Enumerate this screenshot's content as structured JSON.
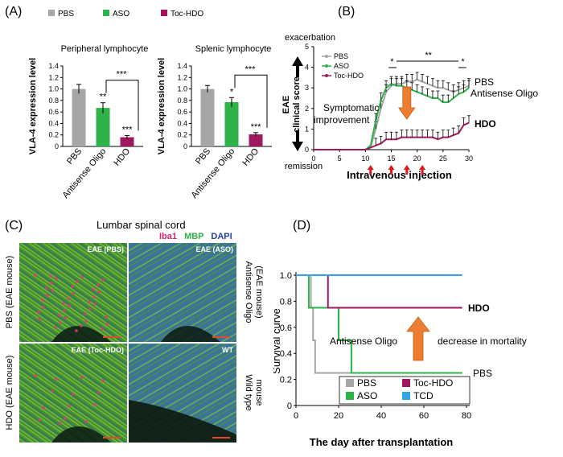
{
  "panels": {
    "A": {
      "label": "(A)",
      "legend": [
        {
          "name": "PBS",
          "color": "#a6a6a6"
        },
        {
          "name": "ASO",
          "color": "#2db34a"
        },
        {
          "name": "Toc-HDO",
          "color": "#a0195c"
        }
      ],
      "charts": [
        {
          "title": "Peripheral lymphocyte",
          "ylabel": "VLA-4 expression level",
          "ylim": [
            0,
            1.4
          ],
          "yticks": [
            "0",
            "0.2",
            "0.4",
            "0.6",
            "0.8",
            "1.0",
            "1.2",
            "1.4"
          ],
          "categories": [
            "PBS",
            "Antisense Oligo",
            "HDO"
          ],
          "values": [
            1.0,
            0.67,
            0.16
          ],
          "errors": [
            0.08,
            0.09,
            0.03
          ],
          "significance": [
            "",
            "**",
            "***"
          ],
          "bracket": "***"
        },
        {
          "title": "Splenic lymphocyte",
          "ylabel": "VLA-4 expression level",
          "ylim": [
            0,
            1.4
          ],
          "yticks": [
            "0",
            "0.2",
            "0.4",
            "0.6",
            "0.8",
            "1.0",
            "1.2",
            "1.4"
          ],
          "categories": [
            "PBS",
            "Antisense Oligo",
            "HDO"
          ],
          "values": [
            1.0,
            0.77,
            0.21
          ],
          "errors": [
            0.06,
            0.08,
            0.03
          ],
          "significance": [
            "",
            "*",
            "***"
          ],
          "bracket": "***"
        }
      ]
    },
    "B": {
      "label": "(B)",
      "top_label": "exacerbation",
      "bottom_label": "remission",
      "ylabel": "EAE clinical score",
      "ylabel_line1": "EAE",
      "ylabel_line2": "clinical score",
      "xlabel": "Intravenous injection",
      "annotation": "Symptomatic improvement",
      "annotation_line1": "Symptomatic",
      "annotation_line2": "improvement",
      "label_pbs": "PBS",
      "label_aso": "Antisense Oligo",
      "label_hdo": "HDO",
      "sig_left": "*",
      "sig_mid": "**",
      "sig_right": "*",
      "legend": [
        "PBS",
        "ASO",
        "Toc-HDO"
      ],
      "injection_days": [
        11,
        15,
        18,
        21
      ],
      "chart_data": {
        "type": "line",
        "xlim": [
          0,
          30
        ],
        "ylim": [
          0,
          5
        ],
        "xticks": [
          "0",
          "5",
          "10",
          "15",
          "20",
          "25",
          "30"
        ],
        "yticks": [
          "0",
          "1",
          "2",
          "3",
          "4",
          "5"
        ],
        "x": [
          0,
          1,
          2,
          3,
          4,
          5,
          6,
          7,
          8,
          9,
          10,
          11,
          12,
          13,
          14,
          15,
          16,
          17,
          18,
          19,
          20,
          21,
          22,
          23,
          24,
          25,
          26,
          27,
          28,
          29,
          30
        ],
        "series": [
          {
            "name": "PBS",
            "color": "#a6a6a6",
            "values": [
              0,
              0,
              0,
              0,
              0,
              0,
              0,
              0,
              0,
              0,
              0,
              0.1,
              1.0,
              2.0,
              2.8,
              3.1,
              3.2,
              3.2,
              3.3,
              3.3,
              3.4,
              3.3,
              3.2,
              3.1,
              3.0,
              3.0,
              2.9,
              2.8,
              2.9,
              3.0,
              3.1
            ]
          },
          {
            "name": "ASO",
            "color": "#2db34a",
            "values": [
              0,
              0,
              0,
              0,
              0,
              0,
              0,
              0,
              0,
              0,
              0,
              0.2,
              1.4,
              2.4,
              3.0,
              3.2,
              3.1,
              3.1,
              3.0,
              2.9,
              2.8,
              2.7,
              2.6,
              2.5,
              2.5,
              2.3,
              2.3,
              2.5,
              2.7,
              2.8,
              3.0
            ]
          },
          {
            "name": "Toc-HDO",
            "color": "#a0195c",
            "values": [
              0,
              0,
              0,
              0,
              0,
              0,
              0,
              0,
              0,
              0,
              0,
              0.1,
              0.2,
              0.3,
              0.5,
              0.5,
              0.5,
              0.6,
              0.6,
              0.6,
              0.6,
              0.6,
              0.6,
              0.6,
              0.5,
              0.6,
              0.6,
              0.7,
              0.8,
              1.2,
              1.3
            ]
          }
        ]
      }
    },
    "C": {
      "label": "(C)",
      "title": "Lumbar spinal cord",
      "stain_iba1": "Iba1",
      "stain_mbp": "MBP",
      "stain_dapi": "DAPI",
      "images": [
        {
          "tag": "EAE (PBS)"
        },
        {
          "tag": "EAE (ASO)"
        },
        {
          "tag": "EAE (Toc-HDO)"
        },
        {
          "tag": "WT"
        }
      ],
      "left_labels": [
        "PBS (EAE mouse)",
        "HDO (EAE mouse)"
      ],
      "right_labels": [
        "Antisense Oligo (EAE mouse)",
        "Wild type mouse"
      ],
      "right_top_line1": "Antisense Oligo",
      "right_top_line2": "(EAE mouse)",
      "right_bottom_line1": "Wild type",
      "right_bottom_line2": "mouse"
    },
    "D": {
      "label": "(D)",
      "ylabel": "Survival curve",
      "xlabel": "The day after transplantation",
      "annotation_aso": "Antisense Oligo",
      "annotation_mortality": "decrease in mortality",
      "label_hdo": "HDO",
      "label_pbs": "PBS",
      "legend": [
        {
          "name": "PBS",
          "color": "#a6a6a6"
        },
        {
          "name": "Toc-HDO",
          "color": "#a0195c"
        },
        {
          "name": "ASO",
          "color": "#2db34a"
        },
        {
          "name": "TCD",
          "color": "#30a6e6"
        }
      ],
      "chart_data": {
        "type": "line",
        "xlim": [
          0,
          80
        ],
        "ylim": [
          0,
          1.0
        ],
        "xticks": [
          "0",
          "20",
          "40",
          "60",
          "80"
        ],
        "yticks": [
          "0",
          "0.2",
          "0.4",
          "0.6",
          "0.8",
          "1.0"
        ],
        "series": [
          {
            "name": "PBS",
            "color": "#a6a6a6",
            "x": [
              0,
              7,
              7,
              8,
              8,
              9,
              9,
              78
            ],
            "y": [
              1.0,
              1.0,
              0.75,
              0.75,
              0.5,
              0.5,
              0.25,
              0.25
            ]
          },
          {
            "name": "Toc-HDO",
            "color": "#a0195c",
            "x": [
              0,
              15,
              15,
              78
            ],
            "y": [
              1.0,
              1.0,
              0.75,
              0.75
            ]
          },
          {
            "name": "ASO",
            "color": "#2db34a",
            "x": [
              0,
              6,
              6,
              13,
              13,
              20,
              20,
              26,
              26,
              78
            ],
            "y": [
              1.0,
              1.0,
              0.75,
              0.75,
              0.75,
              0.75,
              0.5,
              0.5,
              0.25,
              0.25
            ]
          },
          {
            "name": "TCD",
            "color": "#30a6e6",
            "x": [
              0,
              78
            ],
            "y": [
              1.0,
              1.0
            ]
          }
        ]
      }
    }
  }
}
